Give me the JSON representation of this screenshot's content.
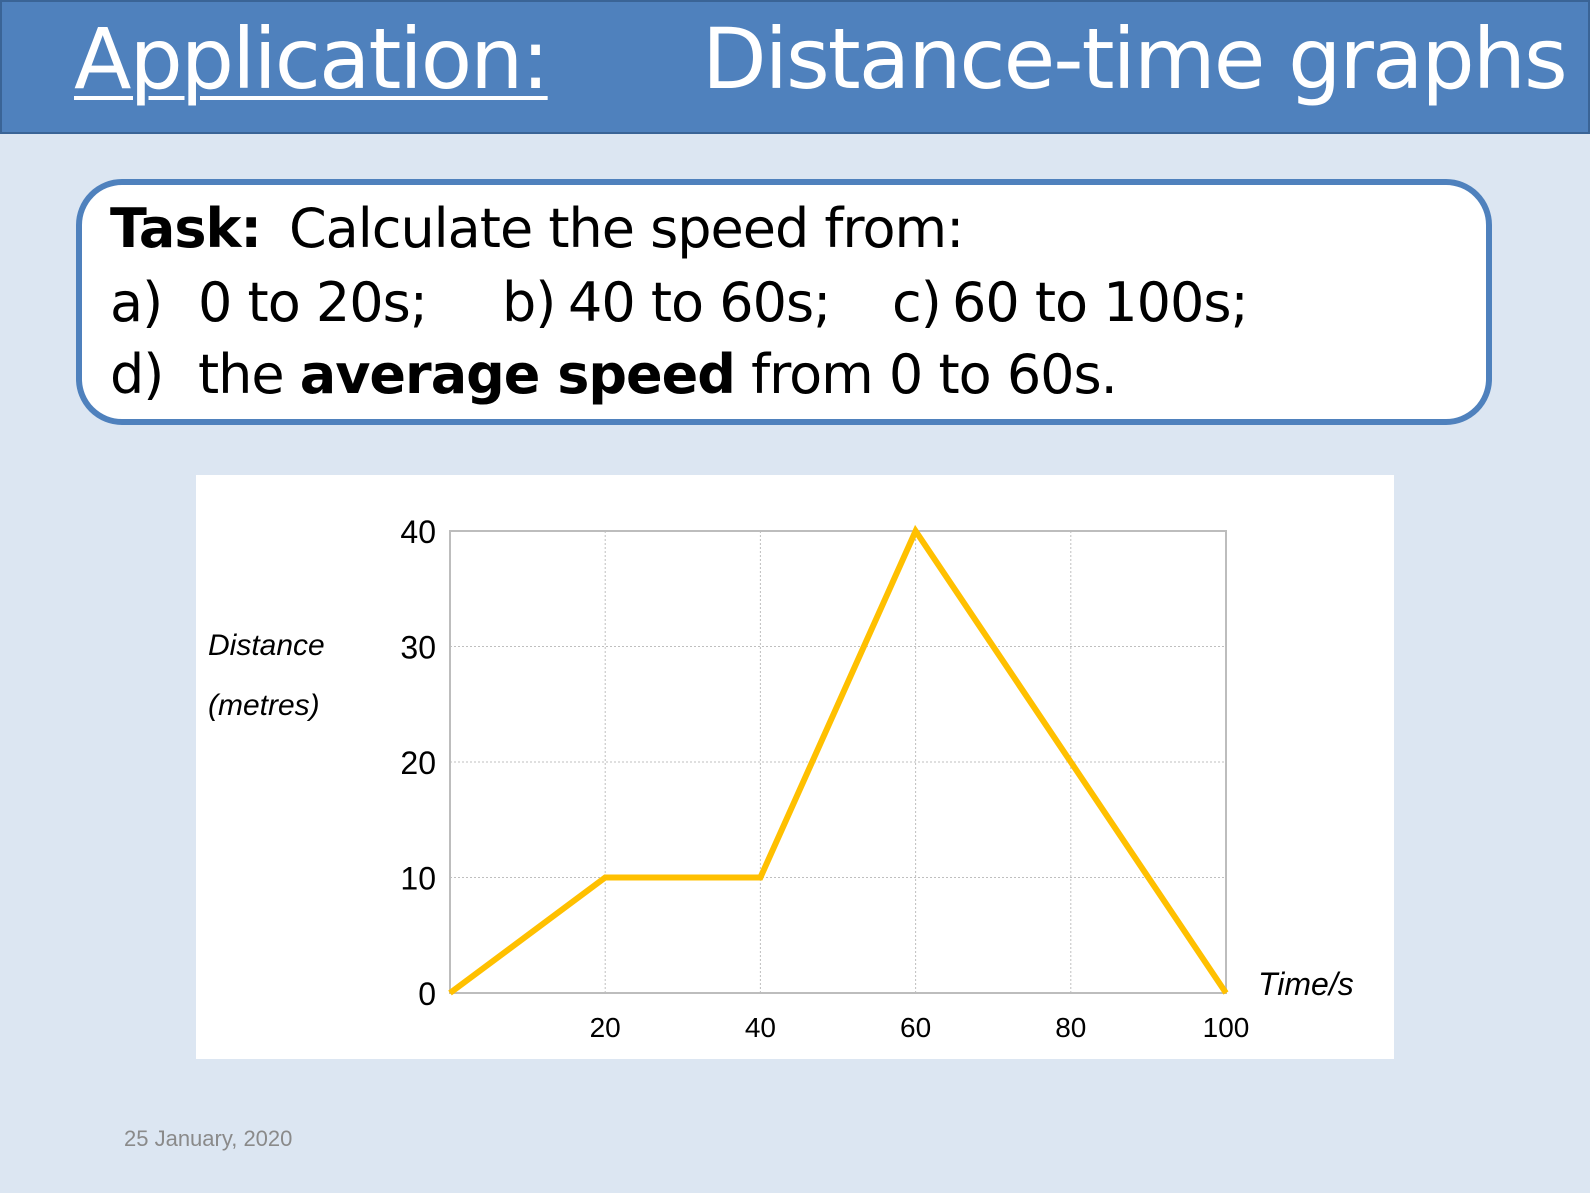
{
  "header": {
    "title_left": "Application:",
    "title_right": "Distance-time graphs",
    "bg_color": "#4f81bd"
  },
  "task": {
    "label": "Task:",
    "instruction": "Calculate the speed from:",
    "items": [
      {
        "marker": "a)",
        "text": "0 to 20s;"
      },
      {
        "marker": "b)",
        "text": "40 to 60s;"
      },
      {
        "marker": "c)",
        "text": "60 to 100s;"
      },
      {
        "marker": "d)",
        "pre": "the ",
        "bold": "average speed",
        "post": " from 0 to 60s."
      }
    ]
  },
  "chart_data": {
    "type": "line",
    "title": "",
    "xlabel": "Time/s",
    "ylabel": "Distance (metres)",
    "ylabel_lines": [
      "Distance",
      "(metres)"
    ],
    "x": [
      0,
      20,
      40,
      60,
      80,
      100
    ],
    "series": [
      {
        "values": [
          0,
          10,
          10,
          40,
          20,
          0
        ],
        "color": "#ffc000"
      }
    ],
    "xlim": [
      0,
      100
    ],
    "ylim": [
      0,
      40
    ],
    "x_ticks": [
      20,
      40,
      60,
      80,
      100
    ],
    "y_ticks": [
      0,
      10,
      20,
      30,
      40
    ],
    "grid": true
  },
  "footer": {
    "date": "25 January, 2020"
  }
}
